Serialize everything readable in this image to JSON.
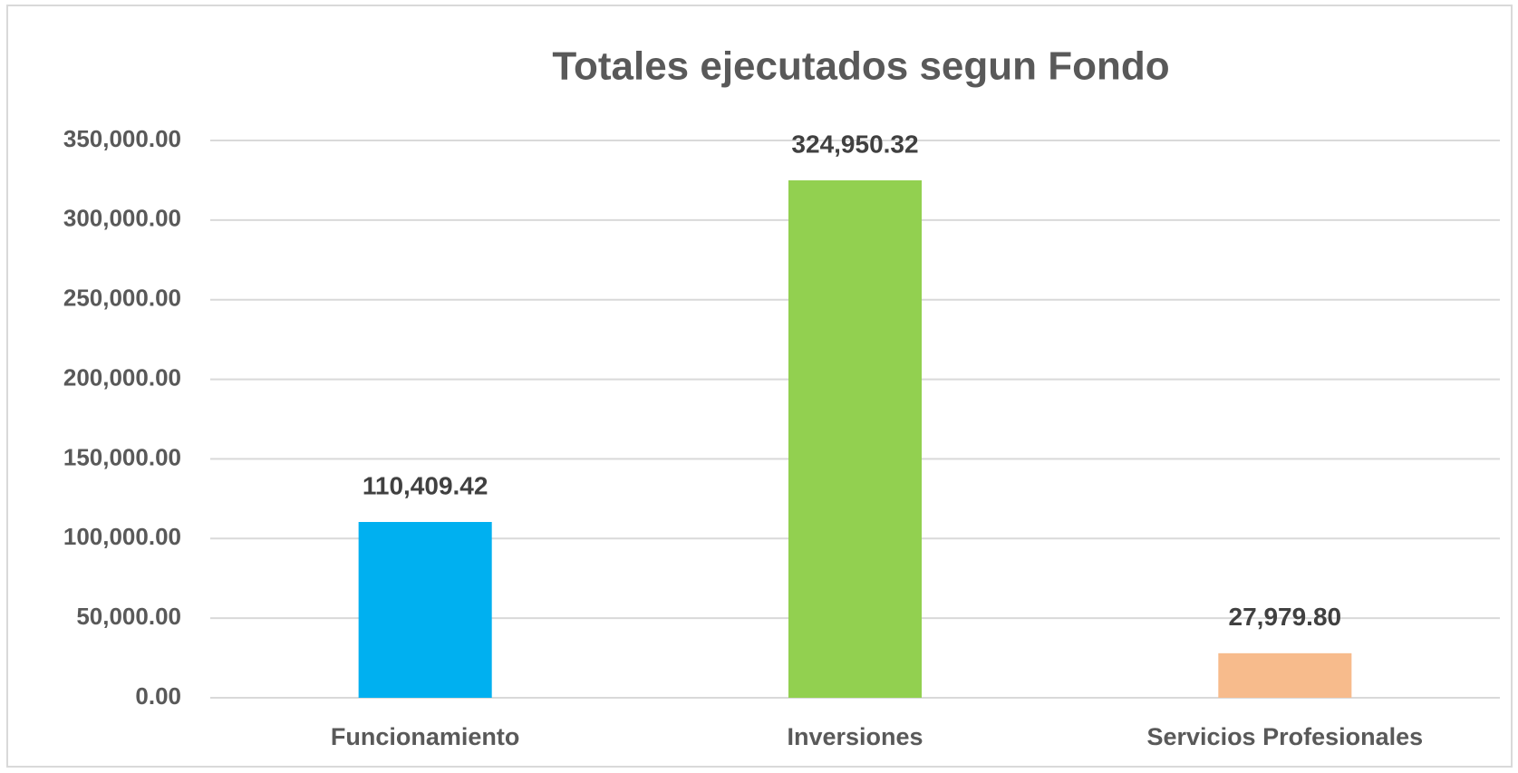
{
  "chart_data": {
    "type": "bar",
    "title": "Totales ejecutados segun Fondo",
    "categories": [
      "Funcionamiento",
      "Inversiones",
      "Servicios Profesionales"
    ],
    "values": [
      110409.42,
      324950.32,
      27979.8
    ],
    "value_labels": [
      "110,409.42",
      "324,950.32",
      "27,979.80"
    ],
    "colors": [
      "#00b0f0",
      "#92d050",
      "#f7bb8c"
    ],
    "ylim": [
      0,
      350000
    ],
    "yticks": [
      {
        "value": 0,
        "label": "0.00"
      },
      {
        "value": 50000,
        "label": "50,000.00"
      },
      {
        "value": 100000,
        "label": "100,000.00"
      },
      {
        "value": 150000,
        "label": "150,000.00"
      },
      {
        "value": 200000,
        "label": "200,000.00"
      },
      {
        "value": 250000,
        "label": "250,000.00"
      },
      {
        "value": 300000,
        "label": "300,000.00"
      },
      {
        "value": 350000,
        "label": "350,000.00"
      }
    ],
    "grid": true
  }
}
